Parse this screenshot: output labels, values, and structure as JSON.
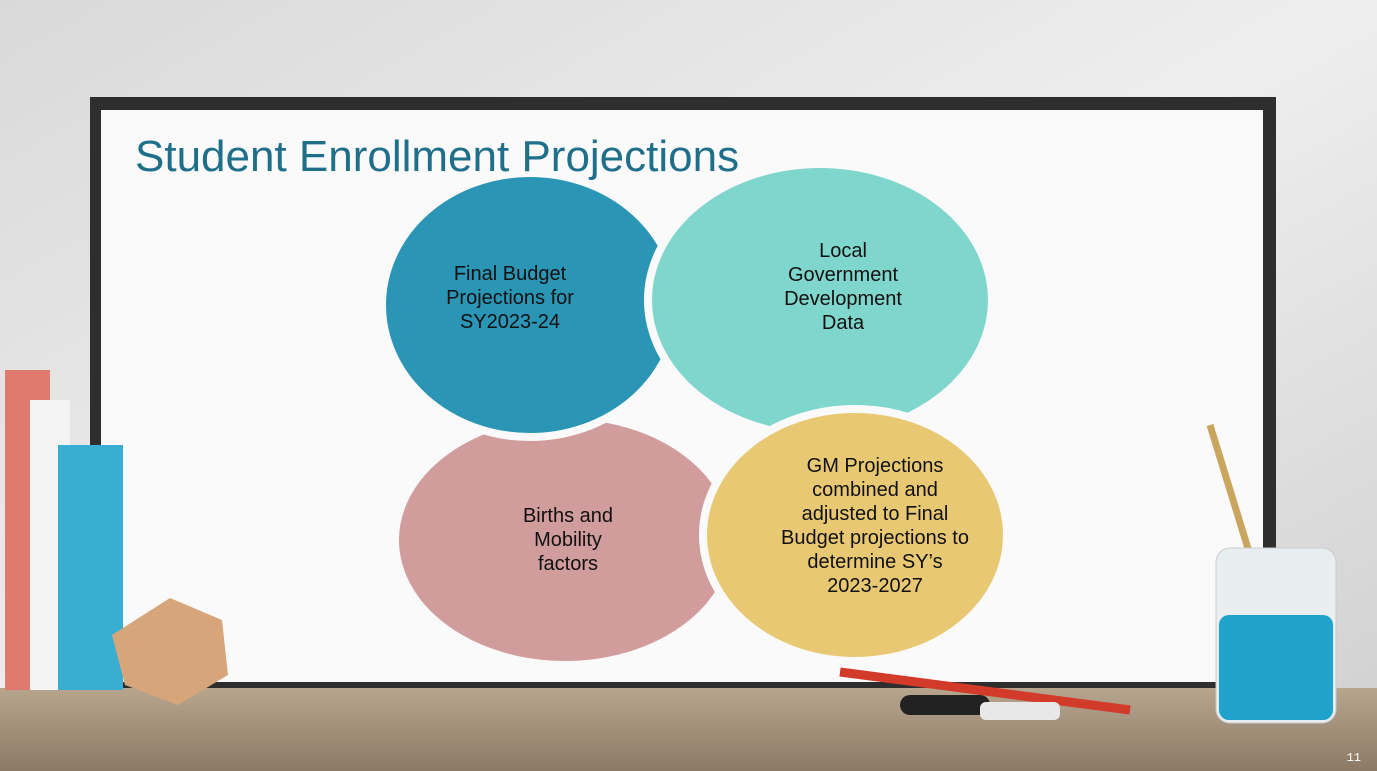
{
  "slide": {
    "title": "Student Enrollment Projections",
    "circles": [
      {
        "label": "Final Budget Projections for SY2023-24"
      },
      {
        "label": "Local Government Development Data"
      },
      {
        "label": "Births and Mobility factors"
      },
      {
        "label": "GM Projections combined and adjusted to Final Budget projections to determine SY’s 2023-2027"
      }
    ],
    "page_number": "11"
  }
}
